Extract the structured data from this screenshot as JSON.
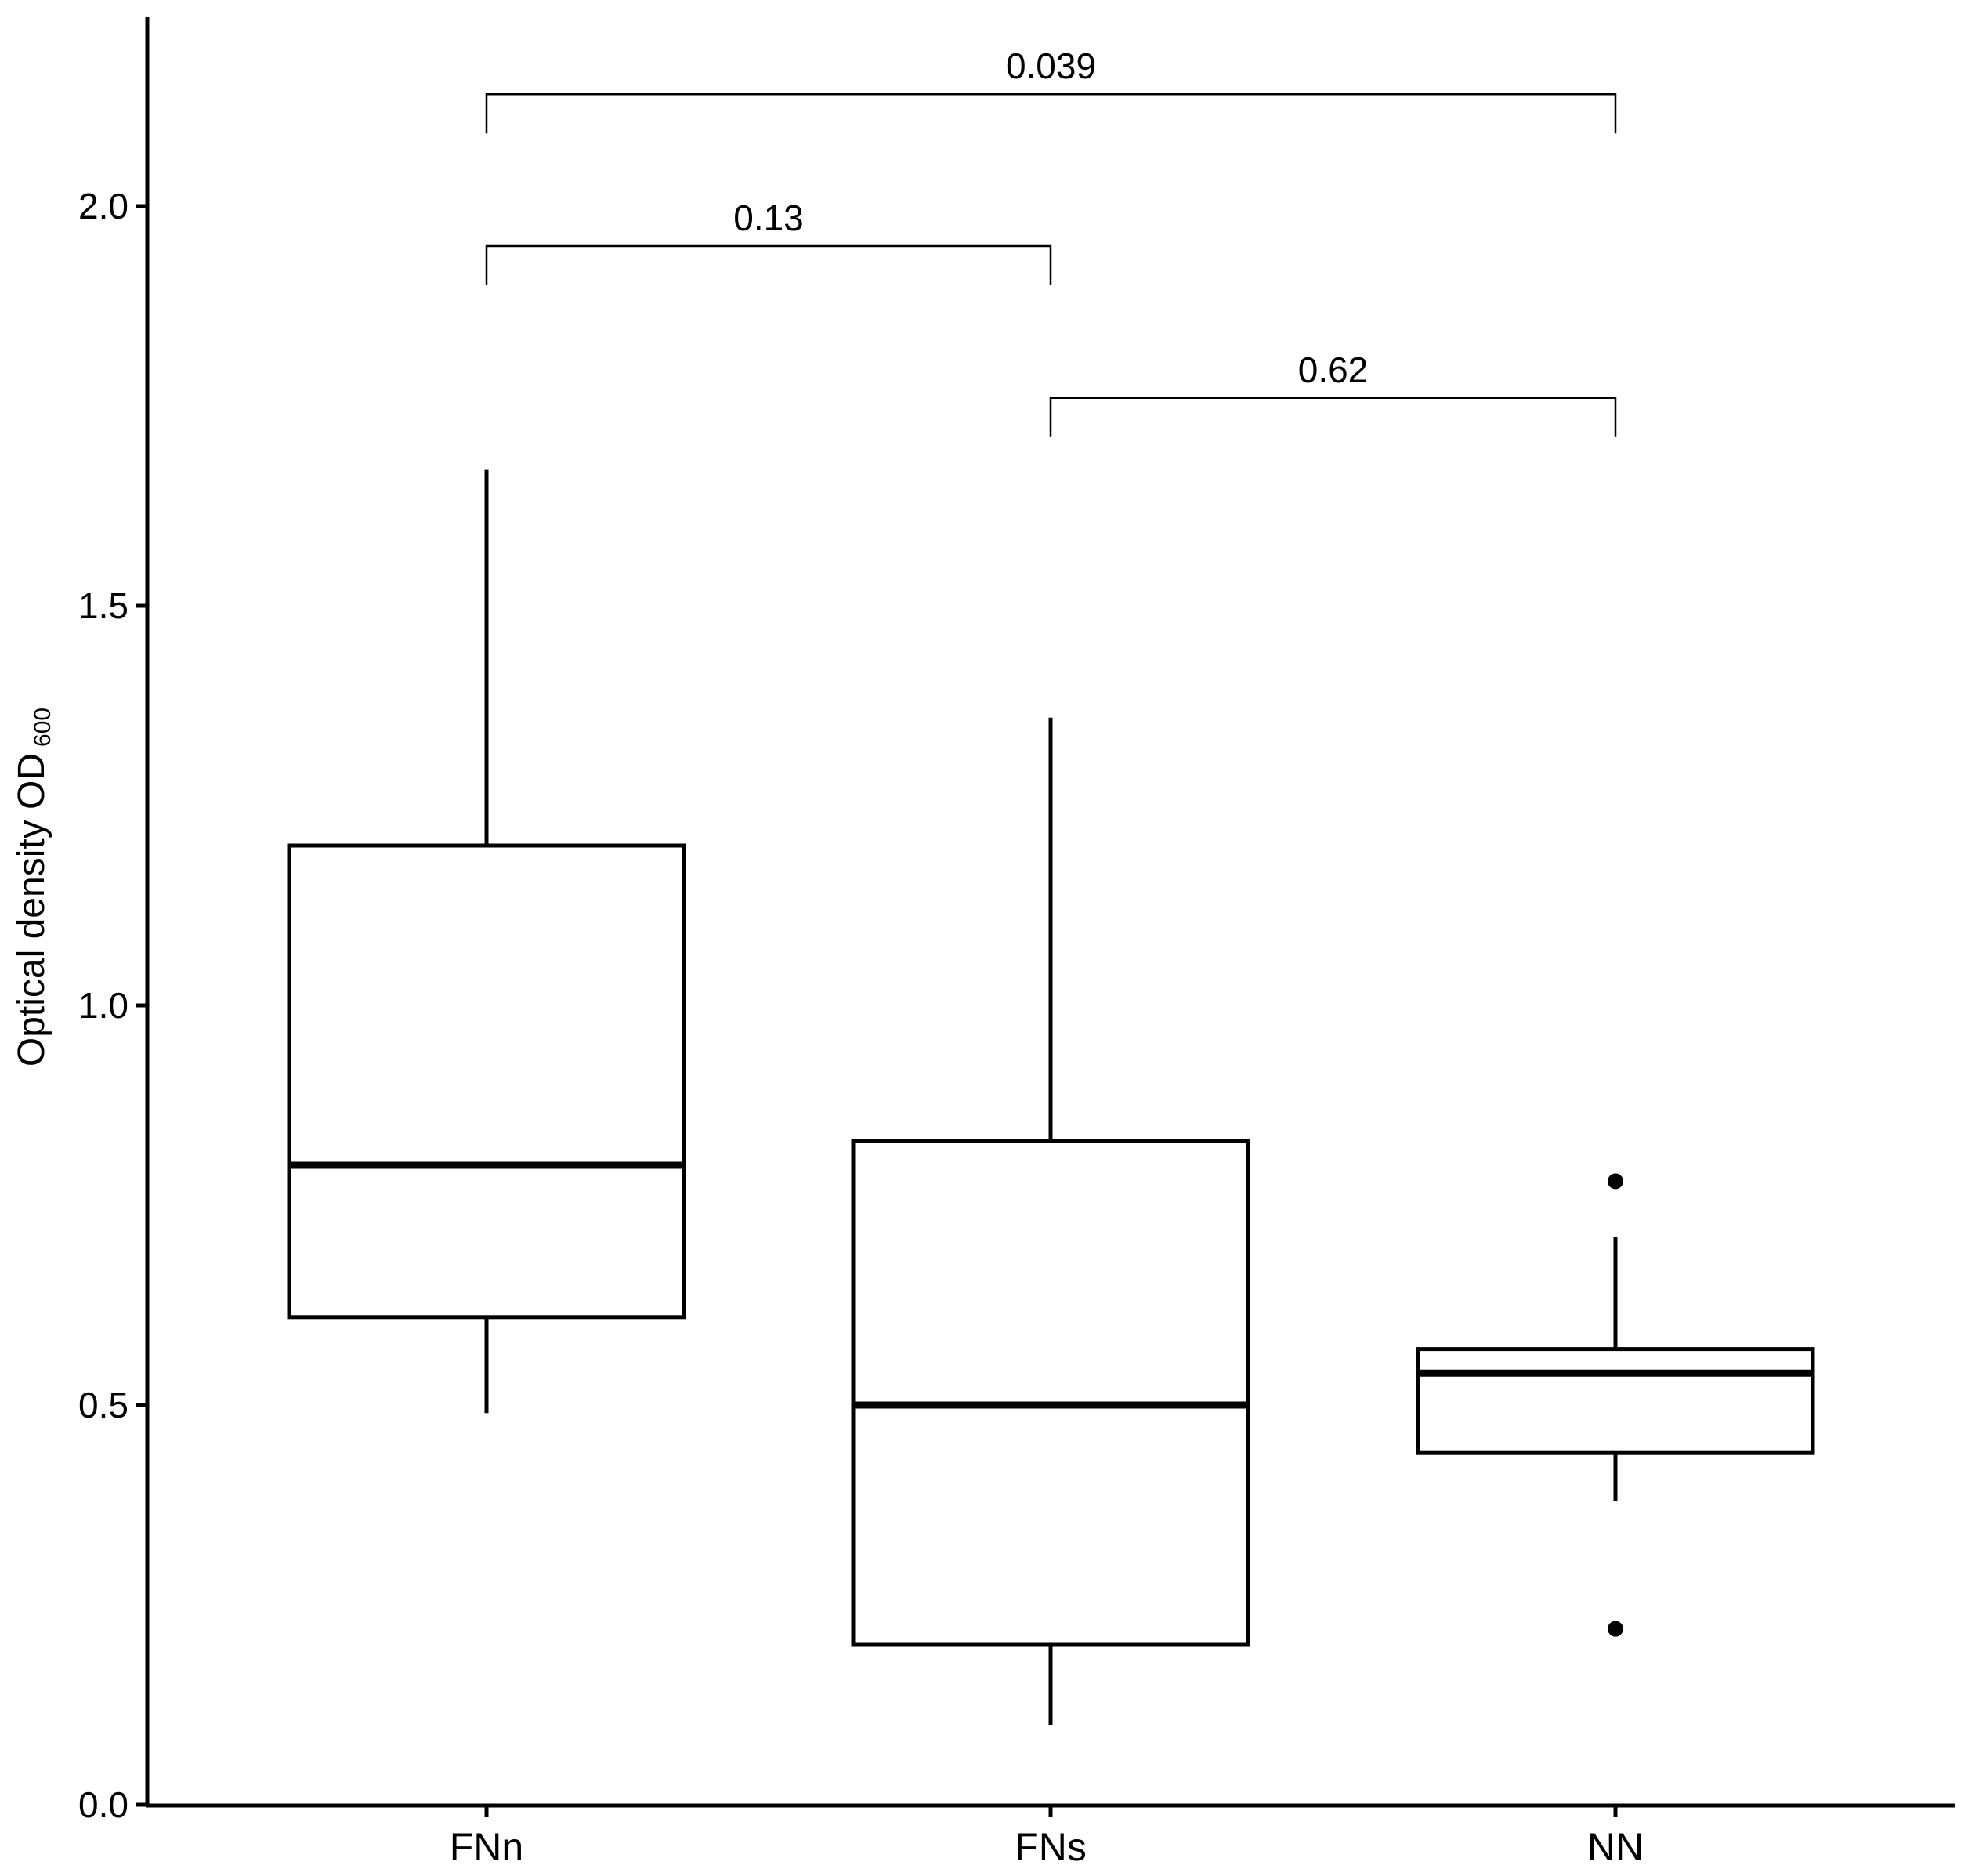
{
  "chart_data": {
    "type": "box",
    "title": "",
    "xlabel": "",
    "ylabel": "Optical density OD",
    "ylabel_subscript": "600",
    "ylim": [
      0.0,
      2.2
    ],
    "yticks": [
      0.0,
      0.5,
      1.0,
      1.5,
      2.0
    ],
    "ytick_labels": [
      "0.0",
      "0.5",
      "1.0",
      "1.5",
      "2.0"
    ],
    "categories": [
      "FNn",
      "FNs",
      "NN"
    ],
    "grid": false,
    "legend": "none",
    "boxes": [
      {
        "category": "FNn",
        "whisker_low": 0.49,
        "q1": 0.61,
        "median": 0.8,
        "q3": 1.2,
        "whisker_high": 1.67,
        "outliers": []
      },
      {
        "category": "FNs",
        "whisker_low": 0.1,
        "q1": 0.2,
        "median": 0.5,
        "q3": 0.83,
        "whisker_high": 1.36,
        "outliers": []
      },
      {
        "category": "NN",
        "whisker_low": 0.38,
        "q1": 0.44,
        "median": 0.54,
        "q3": 0.57,
        "whisker_high": 0.71,
        "outliers": [
          0.78,
          0.22
        ]
      }
    ],
    "comparisons": [
      {
        "group1": "FNn",
        "group2": "NN",
        "label": "0.039",
        "y": 2.14
      },
      {
        "group1": "FNn",
        "group2": "FNs",
        "label": "0.13",
        "y": 1.95
      },
      {
        "group1": "FNs",
        "group2": "NN",
        "label": "0.62",
        "y": 1.76
      }
    ],
    "colors": {
      "box_fill": "#ffffff",
      "stroke": "#000000"
    }
  }
}
